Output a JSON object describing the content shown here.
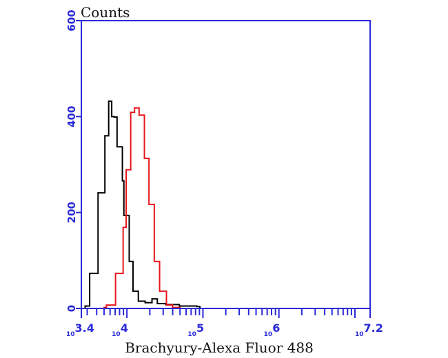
{
  "chart_data": {
    "type": "line",
    "title": "",
    "xlabel": "Brachyury-Alexa Fluor 488",
    "ylabel": "Counts",
    "x_scale": "log10",
    "xlim_log10": [
      3.4,
      7.2
    ],
    "ylim": [
      0,
      600
    ],
    "x_tick_labels": [
      {
        "base": "10",
        "exp": "3.4",
        "log": 3.4
      },
      {
        "base": "10",
        "exp": "4",
        "log": 4
      },
      {
        "base": "10",
        "exp": "5",
        "log": 5
      },
      {
        "base": "10",
        "exp": "6",
        "log": 6
      },
      {
        "base": "10",
        "exp": "7.2",
        "log": 7.2
      }
    ],
    "y_ticks": [
      0,
      200,
      400,
      600
    ],
    "y_tick_labels": [
      "0",
      "200",
      "400",
      "600"
    ],
    "grid": false,
    "axis_color": "#2a2ad8",
    "series": [
      {
        "color": "#000000",
        "log_x": [
          3.4,
          3.45,
          3.51,
          3.62,
          3.71,
          3.76,
          3.8,
          3.83,
          3.87,
          3.94,
          3.96,
          4.03,
          4.08,
          4.15,
          4.24,
          4.33,
          4.4,
          4.51,
          4.69,
          4.92,
          4.96
        ],
        "y": [
          0,
          5,
          73,
          241,
          360,
          432,
          400,
          399,
          337,
          266,
          194,
          98,
          36,
          15,
          12,
          20,
          10,
          8,
          5,
          4,
          0
        ]
      },
      {
        "color": "#e8151b",
        "log_x": [
          3.4,
          3.7,
          3.73,
          3.85,
          3.95,
          3.99,
          4.05,
          4.1,
          4.16,
          4.23,
          4.29,
          4.36,
          4.43,
          4.52,
          4.6,
          4.7
        ],
        "y": [
          0,
          2,
          7,
          73,
          169,
          289,
          409,
          418,
          403,
          313,
          217,
          98,
          36,
          7,
          2,
          0
        ]
      }
    ]
  }
}
